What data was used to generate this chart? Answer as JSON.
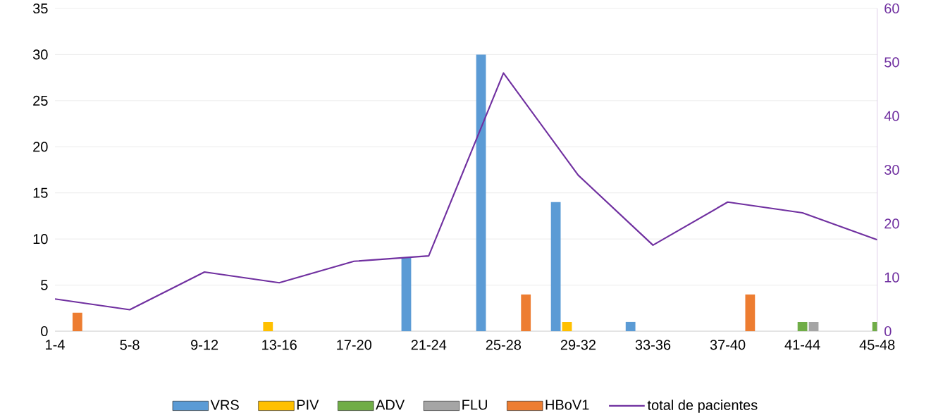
{
  "chart_data": {
    "type": "bar",
    "categories": [
      "1-4",
      "5-8",
      "9-12",
      "13-16",
      "17-20",
      "21-24",
      "25-28",
      "29-32",
      "33-36",
      "37-40",
      "41-44",
      "45-48"
    ],
    "series": [
      {
        "name": "VRS",
        "color": "#5b9bd5",
        "values": [
          0,
          0,
          0,
          0,
          0,
          8,
          30,
          14,
          1,
          0,
          0,
          0
        ]
      },
      {
        "name": "PIV",
        "color": "#ffc000",
        "values": [
          0,
          0,
          0,
          1,
          0,
          0,
          0,
          1,
          0,
          0,
          0,
          0
        ]
      },
      {
        "name": "ADV",
        "color": "#70ad47",
        "values": [
          0,
          0,
          0,
          0,
          0,
          0,
          0,
          0,
          0,
          0,
          1,
          1
        ]
      },
      {
        "name": "FLU",
        "color": "#a5a5a5",
        "values": [
          0,
          0,
          0,
          0,
          0,
          0,
          0,
          0,
          0,
          0,
          1,
          0
        ]
      },
      {
        "name": "HBoV1",
        "color": "#ed7d31",
        "values": [
          2,
          0,
          0,
          0,
          0,
          0,
          4,
          0,
          0,
          4,
          0,
          0
        ]
      },
      {
        "name": "total de pacientes",
        "color": "#7030a0",
        "type": "line",
        "axis": "y2",
        "values": [
          6,
          4,
          11,
          9,
          13,
          14,
          48,
          29,
          16,
          24,
          22,
          17
        ]
      }
    ],
    "ylim": [
      0,
      35
    ],
    "yticks": [
      0,
      5,
      10,
      15,
      20,
      25,
      30,
      35
    ],
    "y2lim": [
      0,
      60
    ],
    "y2ticks": [
      0,
      10,
      20,
      30,
      40,
      50,
      60
    ],
    "grid": "y",
    "legend": "bottom"
  }
}
